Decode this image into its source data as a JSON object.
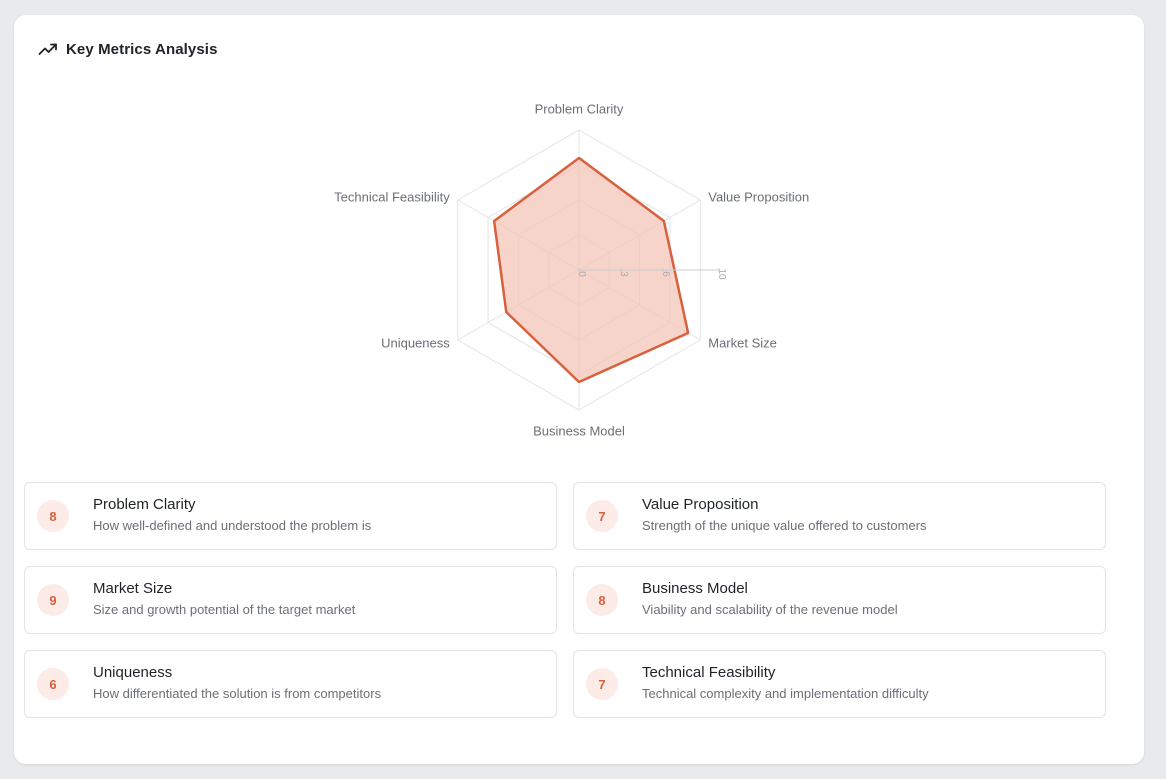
{
  "header": {
    "title": "Key Metrics Analysis",
    "icon": "trending-up-icon"
  },
  "colors": {
    "accent": "#d9603d",
    "accent_fill": "#f3c6b8",
    "score_bg": "#fcebe6",
    "grid": "#e3e4e6"
  },
  "chart_data": {
    "type": "radar",
    "axes": [
      "Problem Clarity",
      "Value Proposition",
      "Market Size",
      "Business Model",
      "Uniqueness",
      "Technical Feasibility"
    ],
    "values": [
      8,
      7,
      9,
      8,
      6,
      7
    ],
    "range": [
      0,
      10
    ],
    "ticks": [
      0,
      3,
      6,
      10
    ],
    "grid": true
  },
  "metrics": [
    {
      "score": "8",
      "name": "Problem Clarity",
      "desc": "How well-defined and understood the problem is"
    },
    {
      "score": "7",
      "name": "Value Proposition",
      "desc": "Strength of the unique value offered to customers"
    },
    {
      "score": "9",
      "name": "Market Size",
      "desc": "Size and growth potential of the target market"
    },
    {
      "score": "8",
      "name": "Business Model",
      "desc": "Viability and scalability of the revenue model"
    },
    {
      "score": "6",
      "name": "Uniqueness",
      "desc": "How differentiated the solution is from competitors"
    },
    {
      "score": "7",
      "name": "Technical Feasibility",
      "desc": "Technical complexity and implementation difficulty"
    }
  ]
}
